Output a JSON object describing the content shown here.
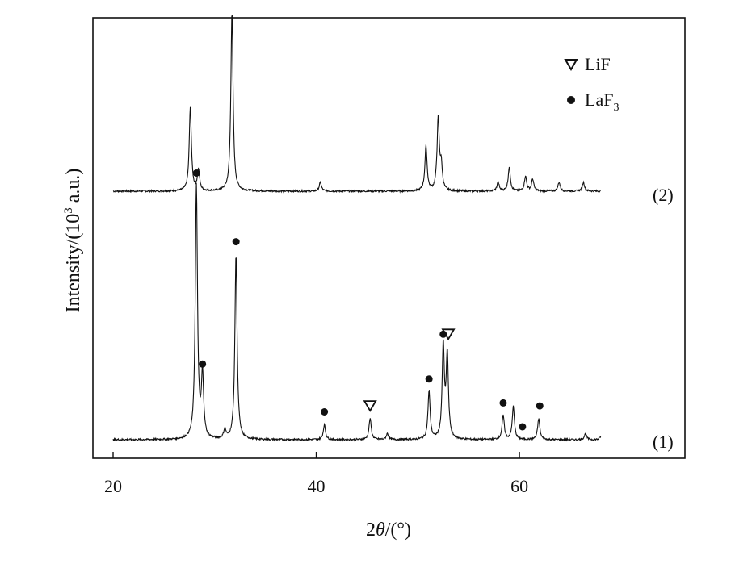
{
  "chart_data": {
    "type": "line",
    "xlabel_prefix": "2",
    "xlabel_theta": "θ",
    "xlabel_suffix": "/(°)",
    "ylabel_main": "Intensity/(10",
    "ylabel_sup": "3",
    "ylabel_tail": " a.u.)",
    "xlim": [
      20,
      72
    ],
    "x_ticks": [
      20,
      40,
      60
    ],
    "y_ticks_shown": false,
    "legend": {
      "placement": "top-right",
      "entries": [
        {
          "marker": "triangle-down-open",
          "label": "LiF",
          "sub": ""
        },
        {
          "marker": "circle-filled",
          "label": "LaF",
          "sub": "3"
        }
      ]
    },
    "series": [
      {
        "name": "(2)",
        "baseline": 0.0,
        "noise": 0.006,
        "peaks": [
          {
            "x": 27.6,
            "h": 0.28
          },
          {
            "x": 28.4,
            "h": 0.07
          },
          {
            "x": 31.7,
            "h": 0.6
          },
          {
            "x": 40.4,
            "h": 0.03
          },
          {
            "x": 50.8,
            "h": 0.15
          },
          {
            "x": 52.0,
            "h": 0.24
          },
          {
            "x": 52.3,
            "h": 0.08
          },
          {
            "x": 57.9,
            "h": 0.03
          },
          {
            "x": 59.0,
            "h": 0.08
          },
          {
            "x": 60.6,
            "h": 0.05
          },
          {
            "x": 61.3,
            "h": 0.04
          },
          {
            "x": 63.9,
            "h": 0.03
          },
          {
            "x": 66.3,
            "h": 0.03
          }
        ]
      },
      {
        "name": "(1)",
        "baseline": 0.0,
        "noise": 0.006,
        "peaks": [
          {
            "x": 28.2,
            "h": 0.85
          },
          {
            "x": 28.8,
            "h": 0.21
          },
          {
            "x": 31.0,
            "h": 0.03
          },
          {
            "x": 32.1,
            "h": 0.62
          },
          {
            "x": 40.8,
            "h": 0.05
          },
          {
            "x": 45.3,
            "h": 0.07
          },
          {
            "x": 47.0,
            "h": 0.02
          },
          {
            "x": 51.1,
            "h": 0.16
          },
          {
            "x": 52.5,
            "h": 0.31
          },
          {
            "x": 52.9,
            "h": 0.28
          },
          {
            "x": 58.4,
            "h": 0.08
          },
          {
            "x": 59.4,
            "h": 0.11
          },
          {
            "x": 61.9,
            "h": 0.07
          },
          {
            "x": 66.5,
            "h": 0.02
          },
          {
            "x": 68.0,
            "h": 0.01
          }
        ]
      }
    ],
    "annotations": [
      {
        "series": "(1)",
        "x": 28.2,
        "marker": "circle-filled"
      },
      {
        "series": "(1)",
        "x": 28.8,
        "marker": "circle-filled"
      },
      {
        "series": "(1)",
        "x": 32.1,
        "marker": "circle-filled"
      },
      {
        "series": "(1)",
        "x": 40.8,
        "marker": "circle-filled"
      },
      {
        "series": "(1)",
        "x": 45.3,
        "marker": "triangle-down-open"
      },
      {
        "series": "(1)",
        "x": 51.1,
        "marker": "circle-filled"
      },
      {
        "series": "(1)",
        "x": 52.5,
        "marker": "circle-filled"
      },
      {
        "series": "(1)",
        "x": 53.0,
        "marker": "triangle-down-open"
      },
      {
        "series": "(1)",
        "x": 58.4,
        "marker": "circle-filled"
      },
      {
        "series": "(1)",
        "x": 60.3,
        "marker": "circle-filled"
      },
      {
        "series": "(1)",
        "x": 62.0,
        "marker": "circle-filled"
      }
    ]
  }
}
